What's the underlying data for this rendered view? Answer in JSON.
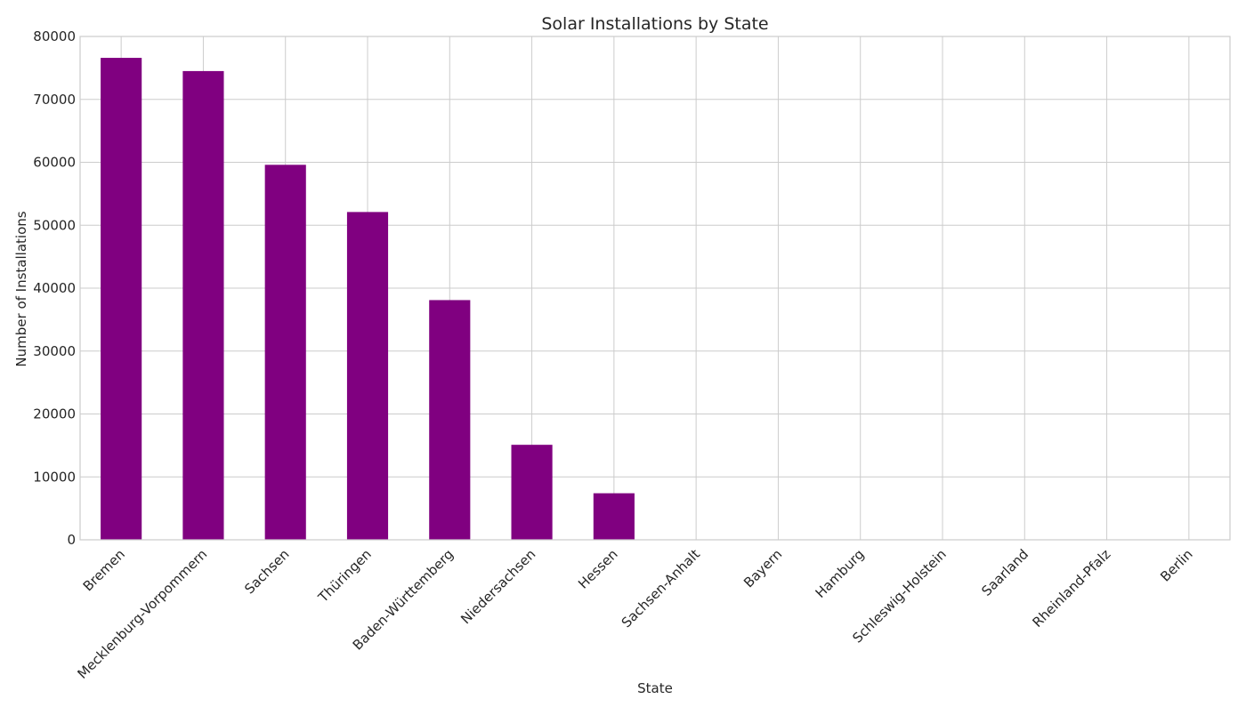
{
  "chart_data": {
    "type": "bar",
    "title": "Solar Installations by State",
    "xlabel": "State",
    "ylabel": "Number of Installations",
    "categories": [
      "Bremen",
      "Mecklenburg-Vorpommern",
      "Sachsen",
      "Thüringen",
      "Baden-Württemberg",
      "Niedersachsen",
      "Hessen",
      "Sachsen-Anhalt",
      "Bayern",
      "Hamburg",
      "Schleswig-Holstein",
      "Saarland",
      "Rheinland-Pfalz",
      "Berlin"
    ],
    "values": [
      76600,
      74500,
      59600,
      52100,
      38100,
      15100,
      7400,
      0,
      0,
      0,
      0,
      0,
      0,
      0
    ],
    "ylim": [
      0,
      80000
    ],
    "yticks": [
      "0",
      "10000",
      "20000",
      "30000",
      "40000",
      "50000",
      "60000",
      "70000",
      "80000"
    ],
    "grid": true,
    "legend": "none",
    "bar_color": "#800080",
    "grid_color": "#cccccc",
    "background": "#ffffff"
  }
}
